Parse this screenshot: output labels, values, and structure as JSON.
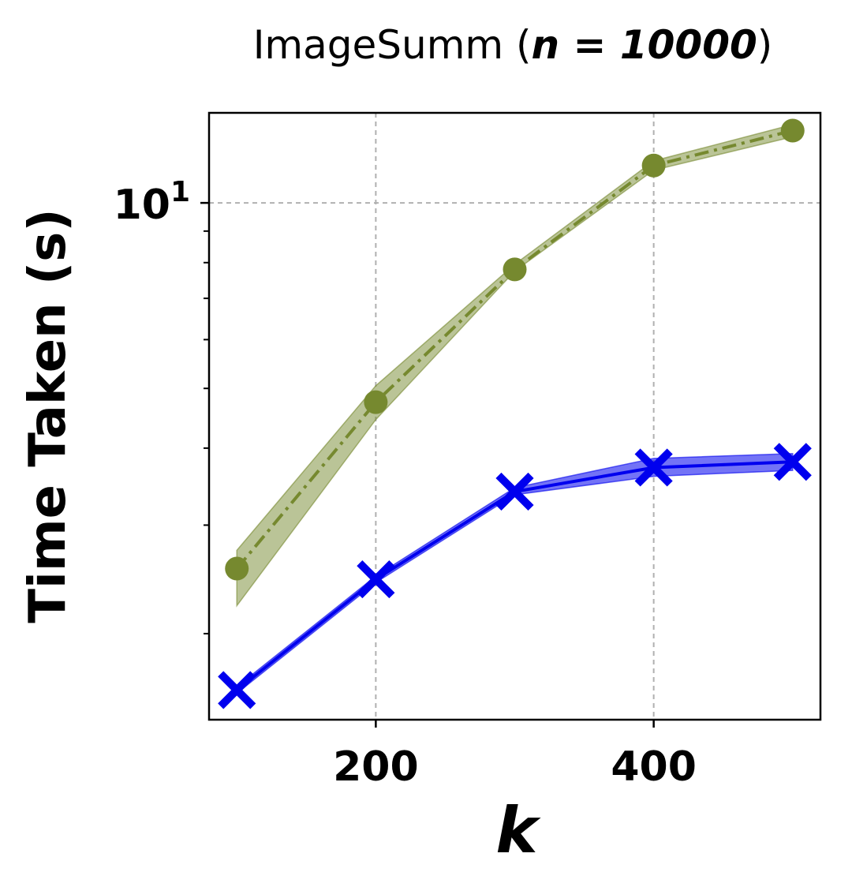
{
  "chart_data": {
    "type": "line",
    "title_prefix": "ImageSumm (",
    "title_math": "n = 10000",
    "title_suffix": ")",
    "xlabel": "k",
    "ylabel": "Time Taken (s)",
    "y_scale": "log",
    "xlim": [
      80,
      520
    ],
    "ylim": [
      1.45,
      14.0
    ],
    "x_ticks": [
      200,
      400
    ],
    "x_tick_labels": [
      "200",
      "400"
    ],
    "y_major_ticks": [
      10
    ],
    "y_major_tick_labels": [
      {
        "base": "10",
        "exp": "1"
      }
    ],
    "y_minor_ticks": [
      2,
      3,
      4,
      5,
      6,
      7,
      8,
      9
    ],
    "grid": true,
    "legend": "none",
    "series": [
      {
        "color": "#76892f",
        "line_style": "dash-dot",
        "marker": "circle",
        "x": [
          100,
          200,
          300,
          400,
          500
        ],
        "y": [
          2.55,
          4.75,
          7.8,
          11.5,
          13.1
        ],
        "y_low": [
          2.22,
          4.45,
          7.75,
          11.3,
          12.8
        ],
        "y_high": [
          2.73,
          5.05,
          7.95,
          11.7,
          13.4
        ]
      },
      {
        "color": "#0000ee",
        "line_style": "solid",
        "marker": "x",
        "x": [
          100,
          200,
          300,
          400,
          500
        ],
        "y": [
          1.62,
          2.45,
          3.4,
          3.72,
          3.8
        ],
        "y_low": [
          1.6,
          2.42,
          3.36,
          3.6,
          3.68
        ],
        "y_high": [
          1.64,
          2.48,
          3.45,
          3.85,
          3.92
        ]
      }
    ]
  }
}
